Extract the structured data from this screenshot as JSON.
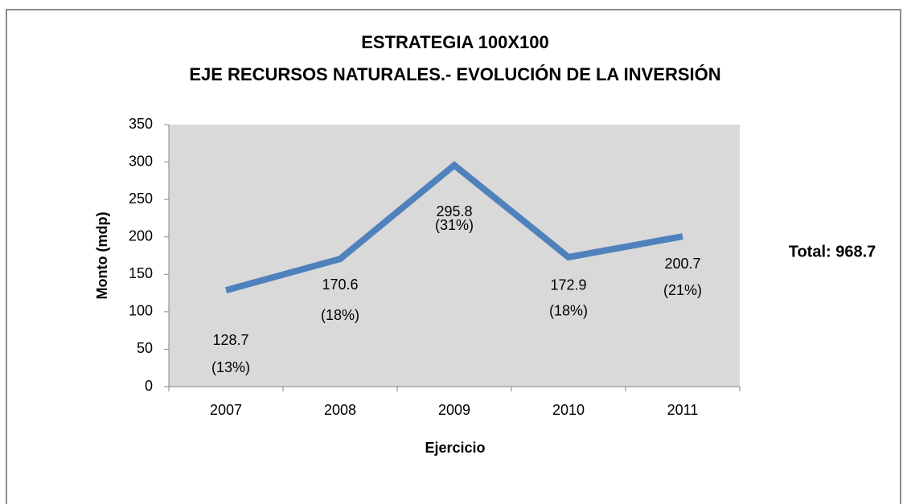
{
  "chart_data": {
    "type": "line",
    "title": [
      "ESTRATEGIA 100X100",
      "EJE RECURSOS NATURALES.- EVOLUCIÓN DE LA INVERSIÓN"
    ],
    "x_label": "Ejercicio",
    "y_label": "Monto (mdp)",
    "categories": [
      "2007",
      "2008",
      "2009",
      "2010",
      "2011"
    ],
    "series": [
      {
        "name": "Monto",
        "color": "#4f81bd",
        "values": [
          128.7,
          170.6,
          295.8,
          172.9,
          200.7
        ]
      }
    ],
    "percent_labels": [
      "(13%)",
      "(18%)",
      "(31%)",
      "(18%)",
      "(21%)"
    ],
    "annotation": "Total:  968.7",
    "ylim": [
      0,
      350
    ],
    "yticks": [
      0,
      50,
      100,
      150,
      200,
      250,
      300,
      350
    ],
    "plot_background": "#d9d9d9"
  }
}
